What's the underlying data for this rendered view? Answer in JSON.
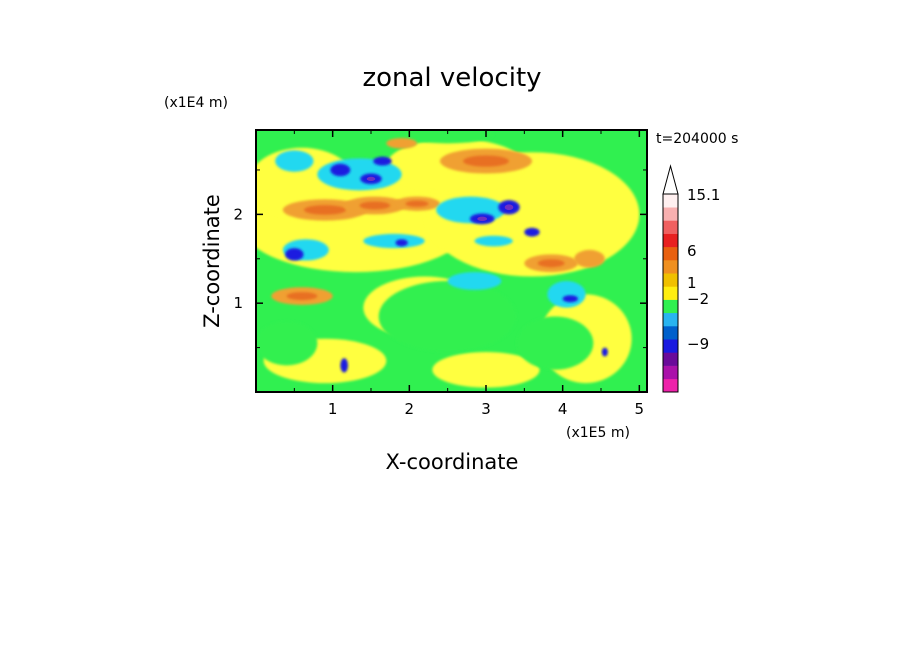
{
  "chart_data": {
    "type": "contour",
    "title": "zonal velocity",
    "xlabel": "X-coordinate",
    "ylabel": "Z-coordinate",
    "x_unit": "(x1E5 m)",
    "y_unit": "(x1E4 m)",
    "time_label": "t=204000 s",
    "xlim": [
      0,
      5.1
    ],
    "ylim": [
      0,
      2.95
    ],
    "x_ticks": [
      "1",
      "2",
      "3",
      "4",
      "5"
    ],
    "x_tick_values": [
      1,
      2,
      3,
      4,
      5
    ],
    "y_ticks": [
      "1",
      "2"
    ],
    "y_tick_values": [
      1,
      2
    ],
    "colorbar": {
      "labels": [
        "15.1",
        "6",
        "1",
        "-2",
        "-9"
      ],
      "colors": [
        "#ee22aa",
        "#aa11aa",
        "#6a0a9a",
        "#1a1ae0",
        "#0060cc",
        "#28b4f0",
        "#30f050",
        "#ffee10",
        "#f0c000",
        "#f09020",
        "#e86010",
        "#e82020",
        "#f06060",
        "#f8b0b0",
        "#fff0f0"
      ],
      "extend": "max"
    },
    "field_colors": {
      "green": "#30f050",
      "yellow": "#ffff40",
      "orange": "#f0a030",
      "darkorange": "#e87020",
      "cyan": "#20d8f0",
      "blue": "#1a1ae0",
      "purple": "#7030c0"
    },
    "features": [
      {
        "kind": "orange",
        "x": 0.9,
        "z": 2.05,
        "rx": 0.55,
        "rz": 0.12
      },
      {
        "kind": "orange",
        "x": 1.55,
        "z": 2.1,
        "rx": 0.4,
        "rz": 0.1
      },
      {
        "kind": "orange",
        "x": 2.1,
        "z": 2.12,
        "rx": 0.3,
        "rz": 0.08
      },
      {
        "kind": "orange",
        "x": 3.0,
        "z": 2.6,
        "rx": 0.6,
        "rz": 0.14
      },
      {
        "kind": "orange",
        "x": 0.6,
        "z": 1.08,
        "rx": 0.4,
        "rz": 0.1
      },
      {
        "kind": "orange",
        "x": 3.85,
        "z": 1.45,
        "rx": 0.35,
        "rz": 0.1
      },
      {
        "kind": "orange",
        "x": 4.35,
        "z": 1.5,
        "rx": 0.2,
        "rz": 0.1
      },
      {
        "kind": "orange",
        "x": 1.9,
        "z": 2.8,
        "rx": 0.2,
        "rz": 0.06
      },
      {
        "kind": "cyan",
        "x": 1.35,
        "z": 2.45,
        "rx": 0.55,
        "rz": 0.18
      },
      {
        "kind": "cyan",
        "x": 2.8,
        "z": 2.05,
        "rx": 0.45,
        "rz": 0.15
      },
      {
        "kind": "cyan",
        "x": 0.65,
        "z": 1.6,
        "rx": 0.3,
        "rz": 0.12
      },
      {
        "kind": "cyan",
        "x": 1.8,
        "z": 1.7,
        "rx": 0.4,
        "rz": 0.08
      },
      {
        "kind": "cyan",
        "x": 2.85,
        "z": 1.25,
        "rx": 0.35,
        "rz": 0.1
      },
      {
        "kind": "cyan",
        "x": 4.05,
        "z": 1.1,
        "rx": 0.25,
        "rz": 0.15
      },
      {
        "kind": "cyan",
        "x": 0.5,
        "z": 2.6,
        "rx": 0.25,
        "rz": 0.12
      },
      {
        "kind": "cyan",
        "x": 3.1,
        "z": 1.7,
        "rx": 0.25,
        "rz": 0.06
      },
      {
        "kind": "blue",
        "x": 1.1,
        "z": 2.5,
        "rx": 0.13,
        "rz": 0.07
      },
      {
        "kind": "blue",
        "x": 1.5,
        "z": 2.4,
        "rx": 0.14,
        "rz": 0.06
      },
      {
        "kind": "blue",
        "x": 1.65,
        "z": 2.6,
        "rx": 0.12,
        "rz": 0.05
      },
      {
        "kind": "blue",
        "x": 0.5,
        "z": 1.55,
        "rx": 0.12,
        "rz": 0.07
      },
      {
        "kind": "blue",
        "x": 3.3,
        "z": 2.08,
        "rx": 0.14,
        "rz": 0.08
      },
      {
        "kind": "blue",
        "x": 2.95,
        "z": 1.95,
        "rx": 0.16,
        "rz": 0.06
      },
      {
        "kind": "blue",
        "x": 1.9,
        "z": 1.68,
        "rx": 0.08,
        "rz": 0.04
      },
      {
        "kind": "blue",
        "x": 4.1,
        "z": 1.05,
        "rx": 0.1,
        "rz": 0.04
      },
      {
        "kind": "blue",
        "x": 1.15,
        "z": 0.3,
        "rx": 0.05,
        "rz": 0.08
      },
      {
        "kind": "blue",
        "x": 3.6,
        "z": 1.8,
        "rx": 0.1,
        "rz": 0.05
      },
      {
        "kind": "blue",
        "x": 4.55,
        "z": 0.45,
        "rx": 0.04,
        "rz": 0.05
      },
      {
        "kind": "green",
        "x": 2.5,
        "z": 0.85,
        "rx": 0.9,
        "rz": 0.4
      },
      {
        "kind": "green",
        "x": 0.4,
        "z": 0.55,
        "rx": 0.4,
        "rz": 0.25
      },
      {
        "kind": "green",
        "x": 3.9,
        "z": 0.55,
        "rx": 0.5,
        "rz": 0.3
      },
      {
        "kind": "green",
        "x": 2.5,
        "z": 2.9,
        "rx": 0.6,
        "rz": 0.1
      }
    ]
  }
}
